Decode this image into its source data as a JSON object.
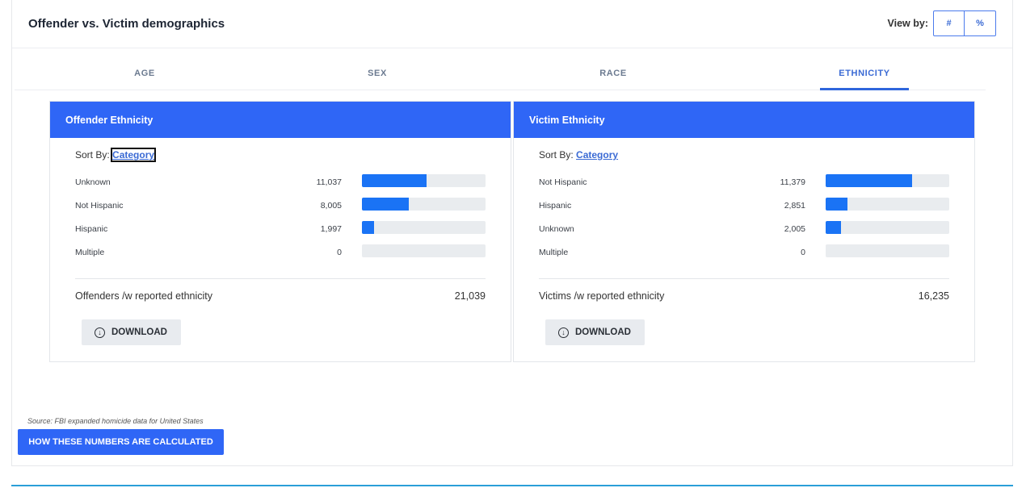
{
  "section": {
    "title": "Offender vs. Victim demographics",
    "view_by_label": "View by:",
    "view_by_options": [
      "#",
      "%"
    ]
  },
  "tabs": [
    {
      "label": "AGE",
      "active": false
    },
    {
      "label": "SEX",
      "active": false
    },
    {
      "label": "RACE",
      "active": false
    },
    {
      "label": "ETHNICITY",
      "active": true
    }
  ],
  "offender": {
    "title": "Offender Ethnicity",
    "sort_by_label": "Sort By:",
    "sort_by_value": "Category",
    "rows": [
      {
        "label": "Unknown",
        "value": "11,037",
        "fraction": 0.525
      },
      {
        "label": "Not Hispanic",
        "value": "8,005",
        "fraction": 0.38
      },
      {
        "label": "Hispanic",
        "value": "1,997",
        "fraction": 0.095
      },
      {
        "label": "Multiple",
        "value": "0",
        "fraction": 0
      }
    ],
    "total_label": "Offenders /w reported ethnicity",
    "total_value": "21,039",
    "download_label": "DOWNLOAD"
  },
  "victim": {
    "title": "Victim Ethnicity",
    "sort_by_label": "Sort By:",
    "sort_by_value": "Category",
    "rows": [
      {
        "label": "Not Hispanic",
        "value": "11,379",
        "fraction": 0.7
      },
      {
        "label": "Hispanic",
        "value": "2,851",
        "fraction": 0.176
      },
      {
        "label": "Unknown",
        "value": "2,005",
        "fraction": 0.124
      },
      {
        "label": "Multiple",
        "value": "0",
        "fraction": 0
      }
    ],
    "total_label": "Victims /w reported ethnicity",
    "total_value": "16,235",
    "download_label": "DOWNLOAD"
  },
  "footer": {
    "source": "Source: FBI expanded homicide data for United States",
    "how_button": "HOW THESE NUMBERS ARE CALCULATED"
  },
  "colors": {
    "accent": "#2f66f6",
    "bar_fill": "#1a73f5",
    "bar_track": "#e9ecef",
    "link": "#3a6ad4"
  }
}
